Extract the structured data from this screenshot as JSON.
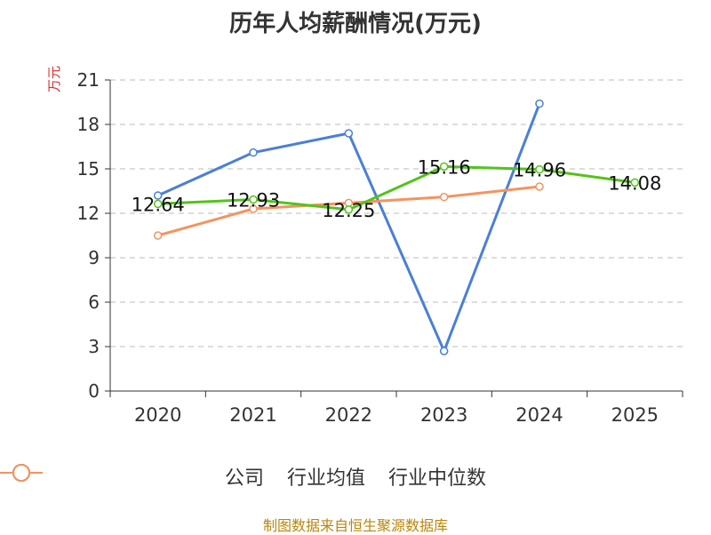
{
  "title": "历年人均薪酬情况(万元)",
  "unit_label": "万元",
  "source": "制图数据来自恒生聚源数据库",
  "chart_data": {
    "type": "line",
    "title": "历年人均薪酬情况(万元)",
    "ylabel": "万元",
    "categories": [
      "2020",
      "2021",
      "2022",
      "2023",
      "2024",
      "2025"
    ],
    "ylim": [
      0,
      21
    ],
    "yticks": [
      0,
      3,
      6,
      9,
      12,
      15,
      18,
      21
    ],
    "grid": true,
    "legend_position": "bottom",
    "series": [
      {
        "name": "公司",
        "color": "#52c41a",
        "values": [
          12.64,
          12.93,
          12.25,
          15.16,
          14.96,
          14.08
        ],
        "labels": [
          "12.64",
          "12.93",
          "12.25",
          "15.16",
          "14.96",
          "14.08"
        ]
      },
      {
        "name": "行业均值",
        "color": "#4a7fd6",
        "values": [
          13.2,
          16.1,
          17.4,
          2.7,
          19.4,
          null
        ]
      },
      {
        "name": "行业中位数",
        "color": "#f5935e",
        "values": [
          10.5,
          12.3,
          12.7,
          13.1,
          13.8,
          null
        ]
      }
    ]
  }
}
